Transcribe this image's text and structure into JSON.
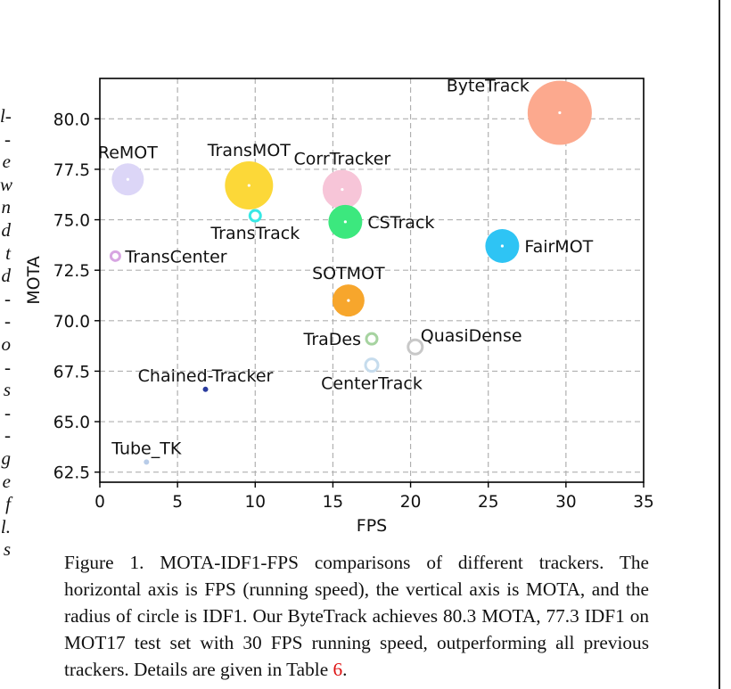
{
  "left_column_fragments": [
    "l-",
    "-",
    "e",
    "w",
    "n",
    "d",
    "t",
    "d",
    "-",
    "-",
    "o",
    "-",
    "s",
    "-",
    "-",
    "g",
    "e",
    "f",
    "l.",
    "s"
  ],
  "chart_data": {
    "type": "scatter",
    "xlabel": "FPS",
    "ylabel": "MOTA",
    "xlim": [
      0,
      35
    ],
    "ylim": [
      62.0,
      82.0
    ],
    "xticks": [
      0,
      5,
      10,
      15,
      20,
      25,
      30,
      35
    ],
    "xtick_labels": [
      "0",
      "5",
      "10",
      "15",
      "20",
      "25",
      "30",
      "35"
    ],
    "yticks": [
      62.5,
      65.0,
      67.5,
      70.0,
      72.5,
      75.0,
      77.5,
      80.0
    ],
    "ytick_labels": [
      "62.5",
      "65.0",
      "67.5",
      "70.0",
      "72.5",
      "75.0",
      "77.5",
      "80.0"
    ],
    "grid": true,
    "bubble_size_encodes": "IDF1",
    "points": [
      {
        "name": "ByteTrack",
        "fps": 29.6,
        "mota": 80.3,
        "r": 36,
        "color": "#fca98e",
        "label_pos": "upper-left"
      },
      {
        "name": "ReMOT",
        "fps": 1.8,
        "mota": 77.0,
        "r": 18,
        "color": "#dcd6f7",
        "label_pos": "above"
      },
      {
        "name": "TransMOT",
        "fps": 9.6,
        "mota": 76.7,
        "r": 27,
        "color": "#fcd838",
        "label_pos": "above"
      },
      {
        "name": "CorrTracker",
        "fps": 15.6,
        "mota": 76.5,
        "r": 22,
        "color": "#f7c5d8",
        "label_pos": "above"
      },
      {
        "name": "TransTrack",
        "fps": 10.0,
        "mota": 75.2,
        "r": 6,
        "color": "#38e8e4",
        "label_pos": "below"
      },
      {
        "name": "CSTrack",
        "fps": 15.8,
        "mota": 74.9,
        "r": 19,
        "color": "#3ce87e",
        "label_pos": "right"
      },
      {
        "name": "FairMOT",
        "fps": 25.9,
        "mota": 73.7,
        "r": 19,
        "color": "#2ec4f4",
        "label_pos": "right"
      },
      {
        "name": "TransCenter",
        "fps": 1.0,
        "mota": 73.2,
        "r": 5,
        "color": "#d8a6e2",
        "label_pos": "right"
      },
      {
        "name": "SOTMOT",
        "fps": 16.0,
        "mota": 71.0,
        "r": 18,
        "color": "#f7a62c",
        "label_pos": "above"
      },
      {
        "name": "TraDes",
        "fps": 17.5,
        "mota": 69.1,
        "r": 6,
        "color": "#a6d3a0",
        "label_pos": "left"
      },
      {
        "name": "QuasiDense",
        "fps": 20.3,
        "mota": 68.7,
        "r": 8,
        "color": "#c8c8c8",
        "label_pos": "upper-right"
      },
      {
        "name": "CenterTrack",
        "fps": 17.5,
        "mota": 67.8,
        "r": 7,
        "color": "#c6dced",
        "label_pos": "below"
      },
      {
        "name": "Chained-Tracker",
        "fps": 6.8,
        "mota": 66.6,
        "r": 3,
        "color": "#2a3c9e",
        "label_pos": "above"
      },
      {
        "name": "Tube_TK",
        "fps": 3.0,
        "mota": 63.0,
        "r": 3,
        "color": "#b8cce8",
        "label_pos": "above"
      }
    ]
  },
  "caption": {
    "text": "Figure 1. MOTA-IDF1-FPS comparisons of different trackers. The horizontal axis is FPS (running speed), the vertical axis is MOTA, and the radius of circle is IDF1.  Our ByteTrack achieves 80.3 MOTA, 77.3 IDF1 on MOT17 test set with 30 FPS running speed, outperforming all previous trackers. Details are given in Table ",
    "ref": "6",
    "end": "."
  }
}
